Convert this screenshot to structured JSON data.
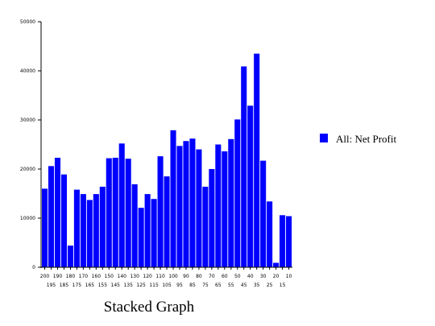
{
  "chart_data": {
    "type": "bar",
    "title": "Stacked Graph",
    "ylim": [
      0,
      50000
    ],
    "yticks": [
      0,
      10000,
      20000,
      30000,
      40000,
      50000
    ],
    "categories": [
      "200",
      "195",
      "190",
      "185",
      "180",
      "175",
      "170",
      "165",
      "160",
      "155",
      "150",
      "145",
      "140",
      "135",
      "130",
      "125",
      "120",
      "115",
      "110",
      "105",
      "100",
      "95",
      "90",
      "85",
      "80",
      "75",
      "70",
      "65",
      "60",
      "55",
      "50",
      "45",
      "40",
      "35",
      "30",
      "25",
      "20",
      "15",
      "10"
    ],
    "series": [
      {
        "name": "All: Net Profit",
        "color": "#0000ff",
        "values": [
          16000,
          20600,
          22300,
          18900,
          4400,
          15800,
          14900,
          13700,
          14900,
          16400,
          22200,
          22300,
          25200,
          22100,
          16900,
          12100,
          14900,
          13900,
          22600,
          18500,
          27900,
          24700,
          25700,
          26200,
          24000,
          16400,
          20000,
          25000,
          23600,
          26100,
          30100,
          40900,
          32900,
          43500,
          21700,
          13400,
          900,
          10600,
          10400
        ]
      }
    ],
    "legend_position": "right"
  }
}
